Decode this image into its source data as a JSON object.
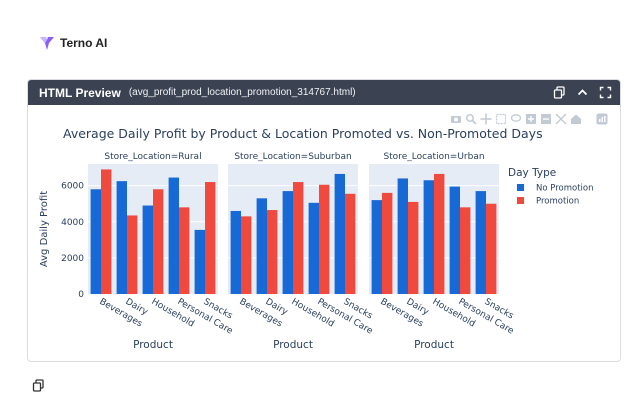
{
  "app": {
    "brand_name": "Terno AI"
  },
  "panel": {
    "title": "HTML Preview",
    "filename": "(avg_profit_prod_location_promotion_314767.html)"
  },
  "colors": {
    "no_promotion": "#1769d6",
    "promotion": "#ef4a3d",
    "plot_bg": "#e5ecf6",
    "header_bg": "#3b4252"
  },
  "icons": [
    "terno-logo-icon",
    "copy-icon",
    "chevron-up-icon",
    "fullscreen-icon",
    "camera-icon",
    "zoom-icon",
    "pan-icon",
    "box-select-icon",
    "lasso-icon",
    "zoom-in-icon",
    "zoom-out-icon",
    "autoscale-icon",
    "reset-axes-icon",
    "plotly-logo-icon"
  ],
  "chart_data": {
    "type": "bar",
    "title": "Average Daily Profit by Product & Location Promoted vs. Non-Promoted Days",
    "xlabel": "Product",
    "ylabel": "Avg Daily Profit",
    "ylim": [
      0,
      7200
    ],
    "yticks": [
      0,
      2000,
      4000,
      6000
    ],
    "ytick_labels": [
      "0",
      "2000",
      "4000",
      "6000"
    ],
    "categories": [
      "Beverages",
      "Dairy",
      "Household",
      "Personal Care",
      "Snacks"
    ],
    "legend": {
      "title": "Day Type",
      "position": "right",
      "items": [
        "No Promotion",
        "Promotion"
      ]
    },
    "facets": [
      {
        "label": "Store_Location=Rural",
        "series": [
          {
            "name": "No Promotion",
            "values": [
              5800,
              6250,
              4900,
              6450,
              3550
            ]
          },
          {
            "name": "Promotion",
            "values": [
              6900,
              4350,
              5800,
              4800,
              6200
            ]
          }
        ]
      },
      {
        "label": "Store_Location=Suburban",
        "series": [
          {
            "name": "No Promotion",
            "values": [
              4600,
              5300,
              5700,
              5050,
              6650
            ]
          },
          {
            "name": "Promotion",
            "values": [
              4300,
              4650,
              6200,
              6050,
              5550
            ]
          }
        ]
      },
      {
        "label": "Store_Location=Urban",
        "series": [
          {
            "name": "No Promotion",
            "values": [
              5200,
              6400,
              6300,
              5950,
              5700
            ]
          },
          {
            "name": "Promotion",
            "values": [
              5600,
              5100,
              6650,
              4800,
              5000
            ]
          }
        ]
      }
    ]
  }
}
